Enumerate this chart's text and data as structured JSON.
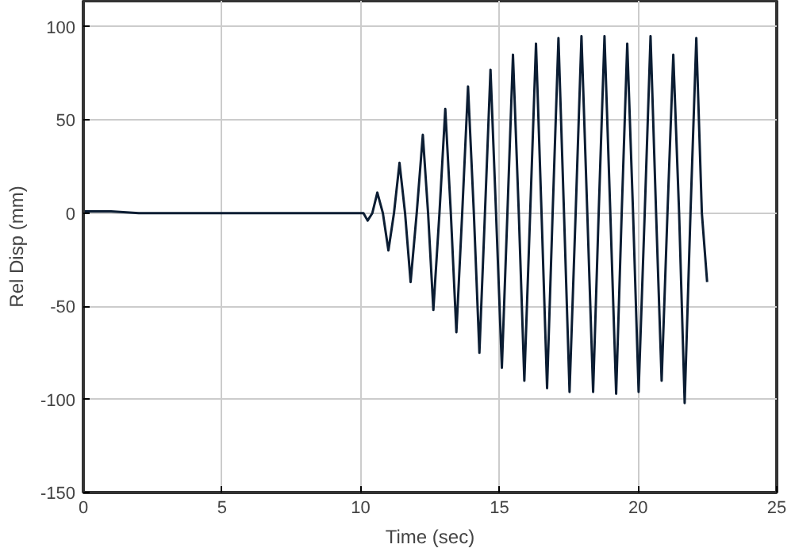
{
  "chart_data": {
    "type": "line",
    "xlabel": "Time (sec)",
    "ylabel": "Rel Disp (mm)",
    "xlim": [
      0,
      25
    ],
    "ylim": [
      -150,
      114
    ],
    "xticks": [
      0,
      5,
      10,
      15,
      20,
      25
    ],
    "yticks": [
      -150,
      -100,
      -50,
      0,
      50,
      100
    ],
    "grid": true,
    "line_style": "solid",
    "marker": "none",
    "series": [
      {
        "color": "#0b1d33",
        "x": [
          0,
          1,
          2,
          3,
          4,
          5,
          6,
          7,
          8,
          9,
          10.1,
          10.25,
          10.42,
          10.6,
          10.8,
          11.0,
          11.2,
          11.4,
          11.6,
          11.8,
          12.02,
          12.24,
          12.43,
          12.62,
          12.84,
          13.05,
          13.25,
          13.45,
          13.66,
          13.87,
          14.08,
          14.28,
          14.48,
          14.68,
          14.88,
          15.09,
          15.29,
          15.49,
          15.7,
          15.9,
          16.11,
          16.32,
          16.52,
          16.72,
          16.92,
          17.13,
          17.33,
          17.53,
          17.75,
          17.96,
          18.17,
          18.38,
          18.58,
          18.79,
          19.0,
          19.21,
          19.41,
          19.61,
          19.82,
          20.02,
          20.24,
          20.45,
          20.65,
          20.85,
          21.06,
          21.27,
          21.48,
          21.68,
          21.89,
          22.1,
          22.3,
          22.49
        ],
        "values": [
          1,
          1,
          0,
          0,
          0,
          0,
          0,
          0,
          0,
          0,
          0,
          -4,
          0,
          11,
          0,
          -20,
          0,
          27,
          0,
          -37,
          0,
          42,
          0,
          -52,
          0,
          56,
          0,
          -64,
          0,
          68,
          0,
          -75,
          0,
          77,
          0,
          -83,
          0,
          85,
          0,
          -90,
          0,
          91,
          0,
          -94,
          0,
          94,
          0,
          -96,
          0,
          95,
          0,
          -96,
          0,
          95,
          0,
          -97,
          0,
          91,
          0,
          -96,
          0,
          95,
          0,
          -90,
          0,
          85,
          0,
          -102,
          0,
          94,
          0,
          -37
        ]
      }
    ]
  }
}
